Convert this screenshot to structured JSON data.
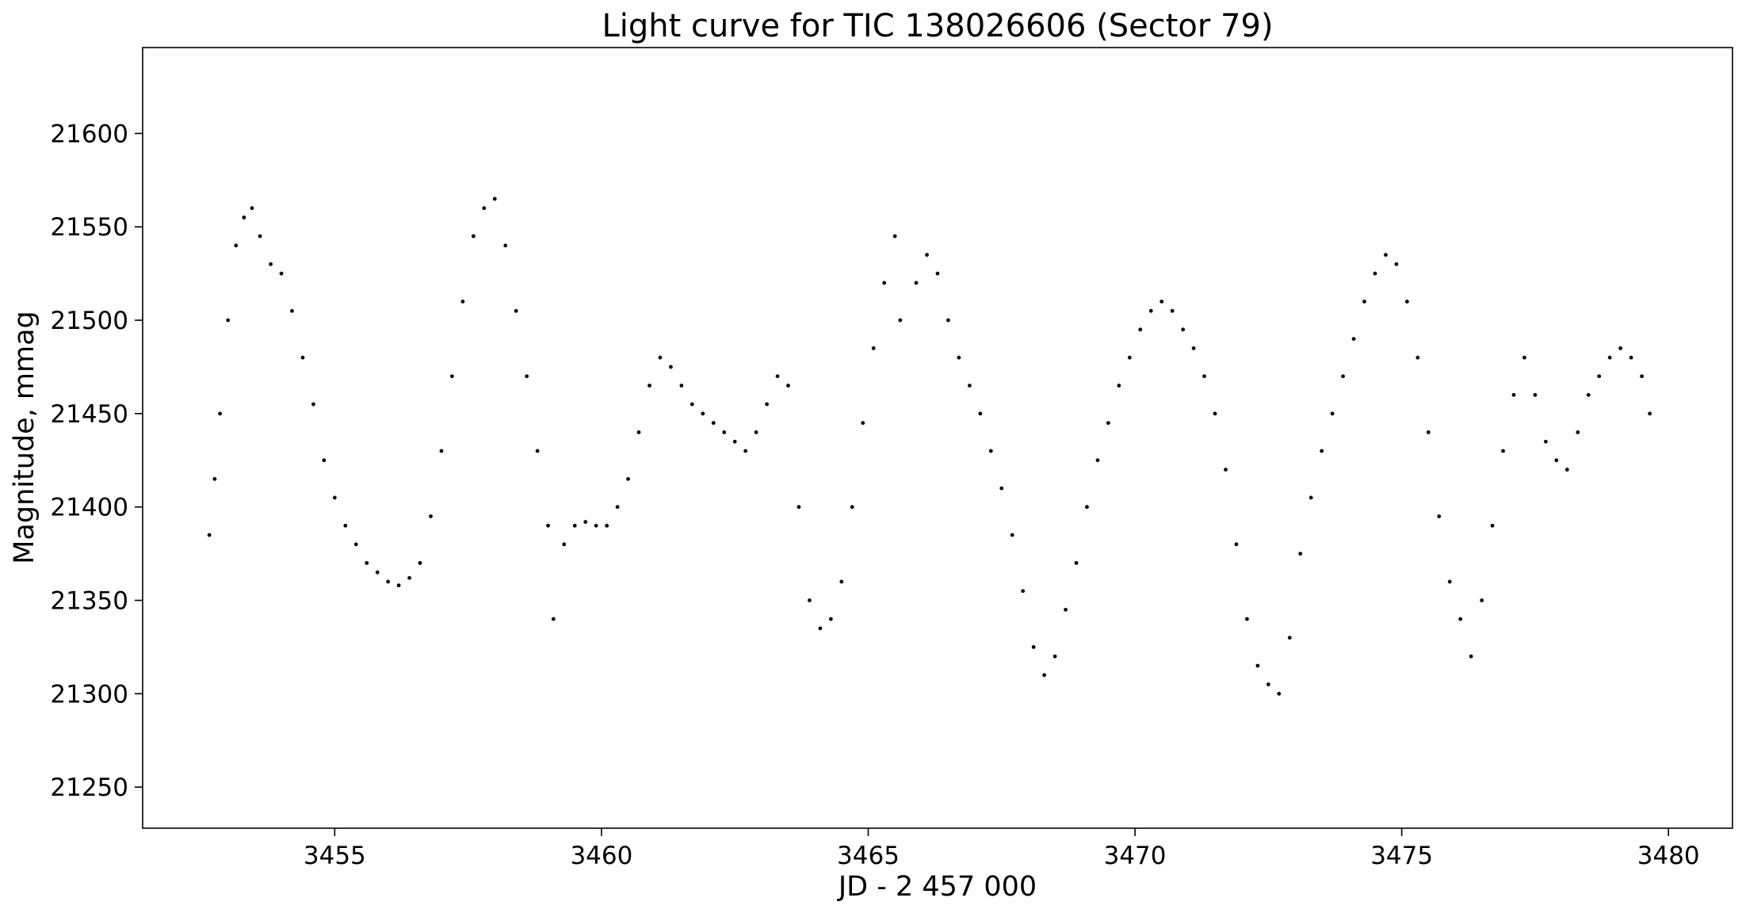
{
  "chart_data": {
    "type": "scatter",
    "title": "Light curve for TIC 138026606 (Sector 79)",
    "xlabel": "JD - 2 457 000",
    "ylabel": "Magnitude, mmag",
    "xlim": [
      3451.4,
      3481.2
    ],
    "ylim": [
      21228,
      21646
    ],
    "xticks": [
      3455,
      3460,
      3465,
      3470,
      3475,
      3480
    ],
    "xtick_labels": [
      "3455",
      "3460",
      "3465",
      "3470",
      "3475",
      "3480"
    ],
    "yticks": [
      21250,
      21300,
      21350,
      21400,
      21450,
      21500,
      21550,
      21600
    ],
    "ytick_labels": [
      "21250",
      "21300",
      "21350",
      "21400",
      "21450",
      "21500",
      "21550",
      "21600"
    ],
    "grid": false,
    "marker_color": "#000000",
    "series": [
      {
        "sampled": true,
        "x": [
          3452.65,
          3452.75,
          3452.85,
          3453.0,
          3453.15,
          3453.3,
          3453.45,
          3453.6,
          3453.8,
          3454.0,
          3454.2,
          3454.4,
          3454.6,
          3454.8,
          3455.0,
          3455.2,
          3455.4,
          3455.6,
          3455.8,
          3456.0,
          3456.2,
          3456.4,
          3456.6,
          3456.8,
          3457.0,
          3457.2,
          3457.4,
          3457.6,
          3457.8,
          3458.0,
          3458.2,
          3458.4,
          3458.6,
          3458.8,
          3459.0,
          3459.1,
          3459.3,
          3459.5,
          3459.7,
          3459.9,
          3460.1,
          3460.3,
          3460.5,
          3460.7,
          3460.9,
          3461.1,
          3461.3,
          3461.5,
          3461.7,
          3461.9,
          3462.1,
          3462.3,
          3462.5,
          3462.7,
          3462.9,
          3463.1,
          3463.3,
          3463.5,
          3463.7,
          3463.9,
          3464.1,
          3464.3,
          3464.5,
          3464.7,
          3464.9,
          3465.1,
          3465.3,
          3465.5,
          3465.6,
          3465.9,
          3466.1,
          3466.3,
          3466.5,
          3466.7,
          3466.9,
          3467.1,
          3467.3,
          3467.5,
          3467.7,
          3467.9,
          3468.1,
          3468.3,
          3468.5,
          3468.7,
          3468.9,
          3469.1,
          3469.3,
          3469.5,
          3469.7,
          3469.9,
          3470.1,
          3470.3,
          3470.5,
          3470.7,
          3470.9,
          3471.1,
          3471.3,
          3471.5,
          3471.7,
          3471.9,
          3472.1,
          3472.3,
          3472.5,
          3472.7,
          3472.9,
          3473.1,
          3473.3,
          3473.5,
          3473.7,
          3473.9,
          3474.1,
          3474.3,
          3474.5,
          3474.7,
          3474.9,
          3475.1,
          3475.3,
          3475.5,
          3475.7,
          3475.9,
          3476.1,
          3476.3,
          3476.5,
          3476.7,
          3476.9,
          3477.1,
          3477.3,
          3477.5,
          3477.7,
          3477.9,
          3478.1,
          3478.3,
          3478.5,
          3478.7,
          3478.9,
          3479.1,
          3479.3,
          3479.5,
          3479.65
        ],
        "y": [
          21385,
          21415,
          21450,
          21500,
          21540,
          21555,
          21560,
          21545,
          21530,
          21525,
          21505,
          21480,
          21455,
          21425,
          21405,
          21390,
          21380,
          21370,
          21365,
          21360,
          21358,
          21362,
          21370,
          21395,
          21430,
          21470,
          21510,
          21545,
          21560,
          21565,
          21540,
          21505,
          21470,
          21430,
          21390,
          21340,
          21380,
          21390,
          21392,
          21390,
          21390,
          21400,
          21415,
          21440,
          21465,
          21480,
          21475,
          21465,
          21455,
          21450,
          21445,
          21440,
          21435,
          21430,
          21440,
          21455,
          21470,
          21465,
          21400,
          21350,
          21335,
          21340,
          21360,
          21400,
          21445,
          21485,
          21520,
          21545,
          21500,
          21520,
          21535,
          21525,
          21500,
          21480,
          21465,
          21450,
          21430,
          21410,
          21385,
          21355,
          21325,
          21310,
          21320,
          21345,
          21370,
          21400,
          21425,
          21445,
          21465,
          21480,
          21495,
          21505,
          21510,
          21505,
          21495,
          21485,
          21470,
          21450,
          21420,
          21380,
          21340,
          21315,
          21305,
          21300,
          21330,
          21375,
          21405,
          21430,
          21450,
          21470,
          21490,
          21510,
          21525,
          21535,
          21530,
          21510,
          21480,
          21440,
          21395,
          21360,
          21340,
          21320,
          21350,
          21390,
          21430,
          21460,
          21480,
          21460,
          21435,
          21425,
          21420,
          21440,
          21460,
          21470,
          21480,
          21485,
          21480,
          21470,
          21450
        ]
      }
    ]
  }
}
